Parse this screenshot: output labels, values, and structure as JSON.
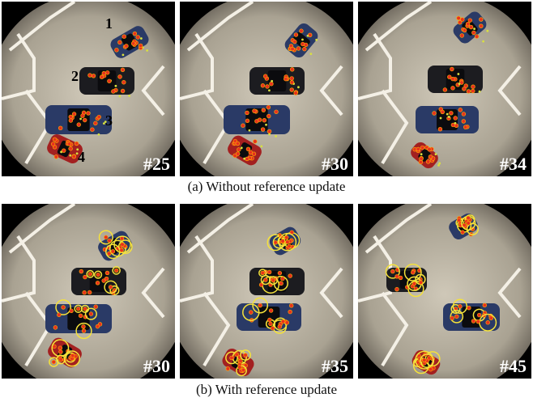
{
  "rows": [
    {
      "caption": "(a) Without reference update",
      "panels": [
        {
          "frame": "#25",
          "markers": [
            "1",
            "2",
            "3",
            "4"
          ]
        },
        {
          "frame": "#30"
        },
        {
          "frame": "#34"
        }
      ]
    },
    {
      "caption": "(b) With reference update",
      "panels": [
        {
          "frame": "#30"
        },
        {
          "frame": "#35"
        },
        {
          "frame": "#45"
        }
      ]
    }
  ]
}
